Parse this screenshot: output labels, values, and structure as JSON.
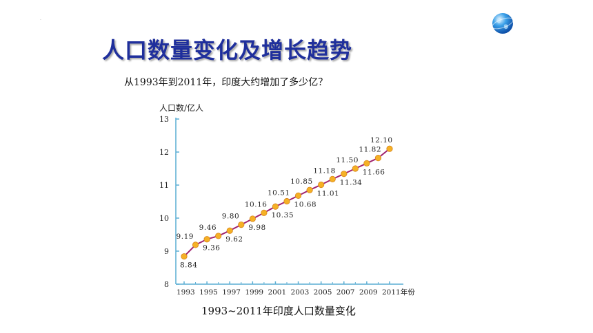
{
  "slide": {
    "title": "人口数量变化及增长趋势",
    "question": "从1993年到2011年，印度大约增加了多少亿？",
    "dot": "."
  },
  "colors": {
    "title": "#1f2f9c",
    "axis": "#5aaed4",
    "line": "#a0236f",
    "point_fill": "#f5b126",
    "point_stroke": "#d7851d"
  },
  "icons": {
    "globe": "globe-icon"
  },
  "chart_data": {
    "type": "line",
    "title": "1993~2011年印度人口数量变化",
    "ylabel": "人口数/亿人",
    "xlabel_suffix": "年份",
    "ylim": [
      8,
      13
    ],
    "y_ticks": [
      8,
      9,
      10,
      11,
      12,
      13
    ],
    "x_ticks": [
      1993,
      1995,
      1997,
      1999,
      2001,
      2003,
      2005,
      2007,
      2009,
      2011
    ],
    "x_tick_labels": [
      "1993",
      "1995",
      "1997",
      "1999",
      "2001",
      "2003",
      "2005",
      "2007",
      "2009",
      "2011年份"
    ],
    "xlim": [
      1993,
      2011
    ],
    "x": [
      1993,
      1994,
      1995,
      1996,
      1997,
      1998,
      1999,
      2000,
      2001,
      2002,
      2003,
      2004,
      2005,
      2006,
      2007,
      2008,
      2009,
      2010,
      2011
    ],
    "y": [
      8.84,
      9.19,
      9.36,
      9.46,
      9.62,
      9.8,
      9.98,
      10.16,
      10.35,
      10.51,
      10.68,
      10.85,
      11.01,
      11.18,
      11.34,
      11.5,
      11.66,
      11.82,
      12.1
    ],
    "labels": [
      "8.84",
      "9.19",
      "9.36",
      "9.46",
      "9.62",
      "9.80",
      "9.98",
      "10.16",
      "10.35",
      "10.51",
      "10.68",
      "10.85",
      "11.01",
      "11.18",
      "11.34",
      "11.50",
      "11.66",
      "11.82",
      "12.10"
    ],
    "grid": false,
    "legend": "none"
  }
}
